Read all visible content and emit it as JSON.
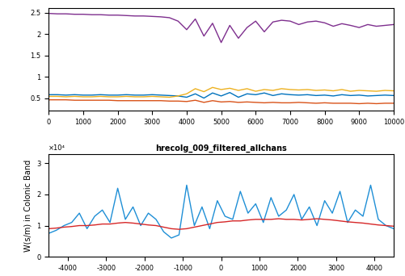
{
  "chart_data": [
    {
      "type": "line",
      "x": [
        0,
        250,
        500,
        750,
        1000,
        1250,
        1500,
        1750,
        2000,
        2250,
        2500,
        2750,
        3000,
        3250,
        3500,
        3750,
        4000,
        4250,
        4500,
        4750,
        5000,
        5250,
        5500,
        5750,
        6000,
        6250,
        6500,
        6750,
        7000,
        7250,
        7500,
        7750,
        8000,
        8250,
        8500,
        8750,
        9000,
        9250,
        9500,
        9750,
        10000
      ],
      "series": [
        {
          "color": "#7e2f8e",
          "values": [
            2.48,
            2.47,
            2.47,
            2.46,
            2.46,
            2.45,
            2.45,
            2.44,
            2.44,
            2.43,
            2.42,
            2.42,
            2.41,
            2.4,
            2.38,
            2.3,
            2.1,
            2.35,
            1.95,
            2.25,
            1.8,
            2.2,
            1.9,
            2.15,
            2.3,
            2.05,
            2.28,
            2.32,
            2.3,
            2.22,
            2.28,
            2.3,
            2.26,
            2.18,
            2.24,
            2.2,
            2.15,
            2.22,
            2.18,
            2.2,
            2.22
          ]
        },
        {
          "color": "#0072bd",
          "values": [
            0.58,
            0.58,
            0.57,
            0.58,
            0.57,
            0.57,
            0.58,
            0.57,
            0.57,
            0.58,
            0.57,
            0.57,
            0.58,
            0.57,
            0.56,
            0.55,
            0.52,
            0.6,
            0.5,
            0.62,
            0.55,
            0.63,
            0.52,
            0.6,
            0.58,
            0.62,
            0.56,
            0.6,
            0.58,
            0.57,
            0.58,
            0.56,
            0.57,
            0.55,
            0.58,
            0.56,
            0.57,
            0.55,
            0.56,
            0.57,
            0.56
          ]
        },
        {
          "color": "#edb120",
          "values": [
            0.54,
            0.54,
            0.53,
            0.54,
            0.53,
            0.53,
            0.54,
            0.53,
            0.53,
            0.54,
            0.53,
            0.53,
            0.54,
            0.53,
            0.52,
            0.55,
            0.6,
            0.72,
            0.65,
            0.75,
            0.7,
            0.73,
            0.68,
            0.72,
            0.66,
            0.7,
            0.68,
            0.72,
            0.7,
            0.69,
            0.7,
            0.68,
            0.69,
            0.67,
            0.7,
            0.66,
            0.68,
            0.67,
            0.66,
            0.68,
            0.67
          ]
        },
        {
          "color": "#d95319",
          "values": [
            0.46,
            0.46,
            0.46,
            0.45,
            0.45,
            0.45,
            0.45,
            0.45,
            0.44,
            0.44,
            0.44,
            0.44,
            0.44,
            0.44,
            0.43,
            0.43,
            0.42,
            0.45,
            0.4,
            0.44,
            0.41,
            0.42,
            0.4,
            0.41,
            0.4,
            0.39,
            0.4,
            0.39,
            0.39,
            0.4,
            0.39,
            0.38,
            0.39,
            0.38,
            0.38,
            0.38,
            0.37,
            0.38,
            0.37,
            0.38,
            0.38
          ]
        }
      ],
      "xlim": [
        0,
        10000
      ],
      "xticks": [
        0,
        1000,
        2000,
        3000,
        4000,
        5000,
        6000,
        7000,
        8000,
        9000,
        10000
      ],
      "ylim": [
        0.2,
        2.6
      ],
      "yticks": [
        0.5,
        1,
        1.5,
        2,
        2.5
      ]
    },
    {
      "type": "line",
      "title": "hrecolg_009_filtered_allchans",
      "y_label": "W(s/m) in Colonic Band",
      "annotations": [
        "×10⁴"
      ],
      "x": [
        -4500,
        -4300,
        -4100,
        -3900,
        -3700,
        -3500,
        -3300,
        -3100,
        -2900,
        -2700,
        -2500,
        -2300,
        -2100,
        -1900,
        -1700,
        -1500,
        -1300,
        -1100,
        -900,
        -700,
        -500,
        -300,
        -100,
        100,
        300,
        500,
        700,
        900,
        1100,
        1300,
        1500,
        1700,
        1900,
        2100,
        2300,
        2500,
        2700,
        2900,
        3100,
        3300,
        3500,
        3700,
        3900,
        4100,
        4300,
        4500
      ],
      "series": [
        {
          "color": "#1f8fd6",
          "values": [
            0.75,
            0.85,
            1.0,
            1.1,
            1.4,
            0.9,
            1.3,
            1.5,
            1.1,
            2.2,
            1.2,
            1.6,
            1.0,
            1.4,
            1.2,
            0.8,
            0.6,
            0.7,
            2.3,
            1.0,
            1.6,
            0.9,
            1.8,
            1.3,
            1.2,
            2.1,
            1.4,
            1.7,
            1.1,
            1.9,
            1.3,
            1.5,
            2.0,
            1.2,
            1.6,
            1.0,
            1.8,
            1.4,
            2.1,
            1.1,
            1.5,
            1.3,
            2.3,
            1.2,
            1.0,
            0.9
          ]
        },
        {
          "color": "#d62728",
          "values": [
            0.9,
            0.92,
            0.95,
            0.97,
            1.0,
            1.0,
            1.02,
            1.05,
            1.05,
            1.08,
            1.1,
            1.08,
            1.05,
            1.02,
            1.0,
            0.95,
            0.9,
            0.88,
            0.9,
            0.95,
            1.0,
            1.05,
            1.1,
            1.12,
            1.15,
            1.15,
            1.18,
            1.2,
            1.2,
            1.2,
            1.22,
            1.2,
            1.2,
            1.18,
            1.2,
            1.22,
            1.2,
            1.18,
            1.15,
            1.12,
            1.1,
            1.08,
            1.05,
            1.02,
            1.0,
            0.98
          ]
        }
      ],
      "xlim": [
        -4500,
        4500
      ],
      "xticks": [
        -4000,
        -3000,
        -2000,
        -1000,
        0,
        1000,
        2000,
        3000,
        4000
      ],
      "ylim": [
        0,
        3.3
      ],
      "yticks": [
        0,
        1,
        2,
        3
      ]
    }
  ]
}
